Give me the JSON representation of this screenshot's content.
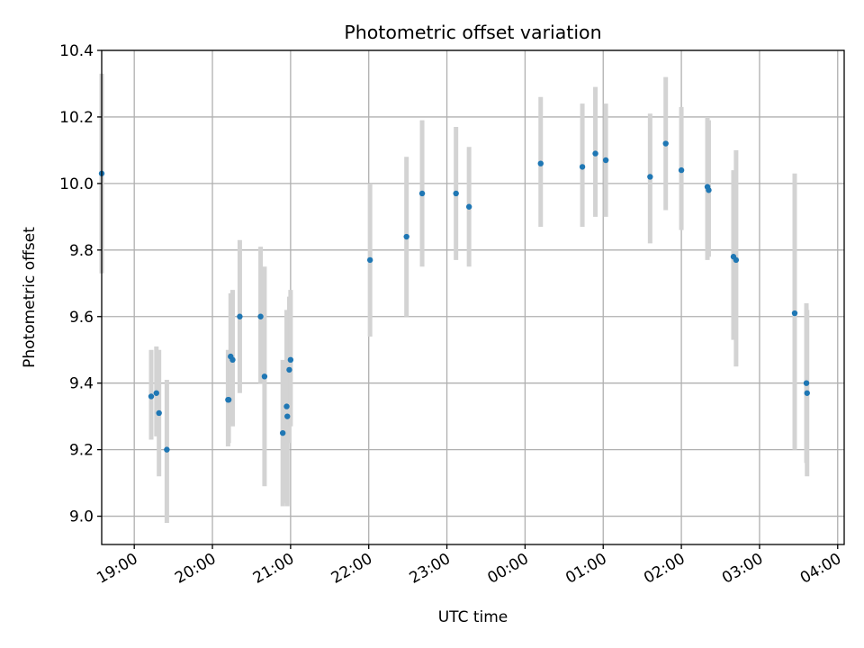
{
  "chart_data": {
    "type": "scatter",
    "title": "Photometric offset variation",
    "xlabel": "UTC time",
    "ylabel": "Photometric offset",
    "xlim": [
      "2024-01-01T18:35:00",
      "2024-01-02T04:05:00"
    ],
    "ylim": [
      8.915,
      10.4
    ],
    "grid": true,
    "x_ticks": [
      {
        "t": "2024-01-01T19:00:00",
        "label": "19:00"
      },
      {
        "t": "2024-01-01T20:00:00",
        "label": "20:00"
      },
      {
        "t": "2024-01-01T21:00:00",
        "label": "21:00"
      },
      {
        "t": "2024-01-01T22:00:00",
        "label": "22:00"
      },
      {
        "t": "2024-01-01T23:00:00",
        "label": "23:00"
      },
      {
        "t": "2024-01-02T00:00:00",
        "label": "00:00"
      },
      {
        "t": "2024-01-02T01:00:00",
        "label": "01:00"
      },
      {
        "t": "2024-01-02T02:00:00",
        "label": "02:00"
      },
      {
        "t": "2024-01-02T03:00:00",
        "label": "03:00"
      },
      {
        "t": "2024-01-02T04:00:00",
        "label": "04:00"
      }
    ],
    "y_ticks": [
      {
        "v": 9.0,
        "label": "9.0"
      },
      {
        "v": 9.2,
        "label": "9.2"
      },
      {
        "v": 9.4,
        "label": "9.4"
      },
      {
        "v": 9.6,
        "label": "9.6"
      },
      {
        "v": 9.8,
        "label": "9.8"
      },
      {
        "v": 10.0,
        "label": "10.0"
      },
      {
        "v": 10.2,
        "label": "10.2"
      },
      {
        "v": 10.4,
        "label": "10.4"
      }
    ],
    "colors": {
      "point": "#1f77b4",
      "errorbar": "#d3d3d3",
      "grid": "#b0b0b0"
    },
    "points": [
      {
        "t": "2024-01-01T18:35:00",
        "y": 10.03,
        "lo": 9.73,
        "hi": 10.33
      },
      {
        "t": "2024-01-01T19:13:00",
        "y": 9.36,
        "lo": 9.23,
        "hi": 9.5
      },
      {
        "t": "2024-01-01T19:17:00",
        "y": 9.37,
        "lo": 9.24,
        "hi": 9.51
      },
      {
        "t": "2024-01-01T19:19:00",
        "y": 9.31,
        "lo": 9.12,
        "hi": 9.5
      },
      {
        "t": "2024-01-01T19:25:00",
        "y": 9.2,
        "lo": 8.98,
        "hi": 9.41
      },
      {
        "t": "2024-01-01T20:12:00",
        "y": 9.35,
        "lo": 9.21,
        "hi": 9.5
      },
      {
        "t": "2024-01-01T20:12:30",
        "y": 9.35,
        "lo": 9.22,
        "hi": 9.49
      },
      {
        "t": "2024-01-01T20:14:00",
        "y": 9.48,
        "lo": 9.28,
        "hi": 9.67
      },
      {
        "t": "2024-01-01T20:15:30",
        "y": 9.47,
        "lo": 9.27,
        "hi": 9.68
      },
      {
        "t": "2024-01-01T20:21:00",
        "y": 9.6,
        "lo": 9.37,
        "hi": 9.83
      },
      {
        "t": "2024-01-01T20:37:00",
        "y": 9.6,
        "lo": 9.4,
        "hi": 9.81
      },
      {
        "t": "2024-01-01T20:40:00",
        "y": 9.42,
        "lo": 9.09,
        "hi": 9.75
      },
      {
        "t": "2024-01-01T20:54:00",
        "y": 9.25,
        "lo": 9.03,
        "hi": 9.47
      },
      {
        "t": "2024-01-01T20:57:00",
        "y": 9.33,
        "lo": 9.04,
        "hi": 9.62
      },
      {
        "t": "2024-01-01T20:57:30",
        "y": 9.3,
        "lo": 9.03,
        "hi": 9.58
      },
      {
        "t": "2024-01-01T20:59:00",
        "y": 9.44,
        "lo": 9.22,
        "hi": 9.66
      },
      {
        "t": "2024-01-01T21:00:00",
        "y": 9.47,
        "lo": 9.27,
        "hi": 9.68
      },
      {
        "t": "2024-01-01T22:01:00",
        "y": 9.77,
        "lo": 9.54,
        "hi": 10.0
      },
      {
        "t": "2024-01-01T22:29:00",
        "y": 9.84,
        "lo": 9.6,
        "hi": 10.08
      },
      {
        "t": "2024-01-01T22:41:00",
        "y": 9.97,
        "lo": 9.75,
        "hi": 10.19
      },
      {
        "t": "2024-01-01T23:07:00",
        "y": 9.97,
        "lo": 9.77,
        "hi": 10.17
      },
      {
        "t": "2024-01-01T23:17:00",
        "y": 9.93,
        "lo": 9.75,
        "hi": 10.11
      },
      {
        "t": "2024-01-02T00:12:00",
        "y": 10.06,
        "lo": 9.87,
        "hi": 10.26
      },
      {
        "t": "2024-01-02T00:44:00",
        "y": 10.05,
        "lo": 9.87,
        "hi": 10.24
      },
      {
        "t": "2024-01-02T00:54:00",
        "y": 10.09,
        "lo": 9.9,
        "hi": 10.29
      },
      {
        "t": "2024-01-02T01:02:00",
        "y": 10.07,
        "lo": 9.9,
        "hi": 10.24
      },
      {
        "t": "2024-01-02T01:36:00",
        "y": 10.02,
        "lo": 9.82,
        "hi": 10.21
      },
      {
        "t": "2024-01-02T01:48:00",
        "y": 10.12,
        "lo": 9.92,
        "hi": 10.32
      },
      {
        "t": "2024-01-02T02:00:00",
        "y": 10.04,
        "lo": 9.86,
        "hi": 10.23
      },
      {
        "t": "2024-01-02T02:20:00",
        "y": 9.99,
        "lo": 9.77,
        "hi": 10.2
      },
      {
        "t": "2024-01-02T02:21:00",
        "y": 9.98,
        "lo": 9.78,
        "hi": 10.19
      },
      {
        "t": "2024-01-02T02:40:00",
        "y": 9.78,
        "lo": 9.53,
        "hi": 10.04
      },
      {
        "t": "2024-01-02T02:42:00",
        "y": 9.77,
        "lo": 9.45,
        "hi": 10.1
      },
      {
        "t": "2024-01-02T03:27:00",
        "y": 9.61,
        "lo": 9.2,
        "hi": 10.03
      },
      {
        "t": "2024-01-02T03:36:00",
        "y": 9.4,
        "lo": 9.16,
        "hi": 9.64
      },
      {
        "t": "2024-01-02T03:36:30",
        "y": 9.37,
        "lo": 9.12,
        "hi": 9.62
      }
    ]
  }
}
